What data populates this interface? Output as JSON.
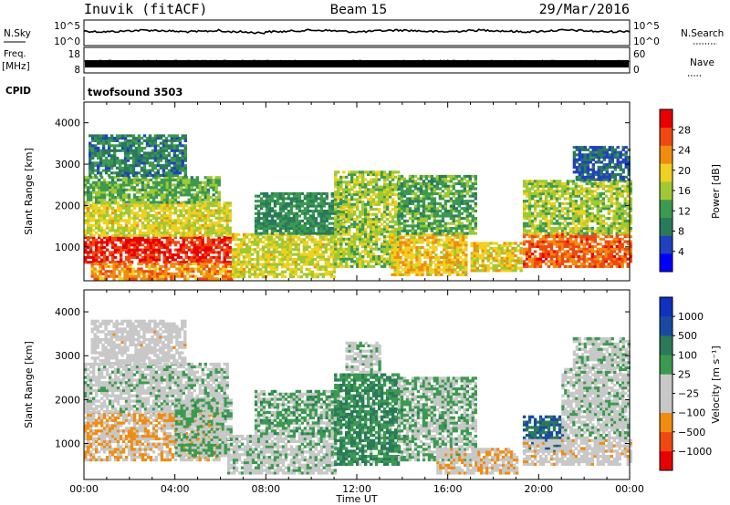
{
  "header": {
    "station": "Inuvik (fitACF)",
    "beam": "Beam 15",
    "date": "29/Mar/2016"
  },
  "aux_panels": {
    "nsky_label": "N.Sky",
    "nsky_ticks": [
      "10^5",
      "10^0"
    ],
    "nsearch_label": "N.Search",
    "nsearch_ticks": [
      "10^5",
      "10^0"
    ],
    "freq_label": "Freq.",
    "freq_unit": "[MHz]",
    "freq_ticks": [
      "18",
      "8"
    ],
    "nave_label": "Nave",
    "nave_ticks": [
      "60",
      "0"
    ],
    "cpid_label": "CPID",
    "cpid_value": "twofsound 3503"
  },
  "colors": {
    "power_scale": [
      "#0000ff",
      "#2040c0",
      "#2a7a5a",
      "#3c9a50",
      "#a0c832",
      "#f0d020",
      "#f08c10",
      "#f04810",
      "#e80000"
    ],
    "velocity_scale": [
      "#e80000",
      "#f04810",
      "#f08c10",
      "#c8c8c8",
      "#c8c8c8",
      "#3c9a50",
      "#2a7a5a",
      "#1a4aa0",
      "#1030c0"
    ]
  },
  "chart_data": [
    {
      "type": "heatmap",
      "title": "",
      "xlabel": "",
      "ylabel": "Slant Range [km]",
      "xlim": [
        "00:00",
        "00:00"
      ],
      "ylim": [
        180,
        4500
      ],
      "x_ticks": [
        "00:00",
        "04:00",
        "08:00",
        "12:00",
        "16:00",
        "20:00",
        "00:00"
      ],
      "y_ticks": [
        1000,
        2000,
        3000,
        4000
      ],
      "colorbar": {
        "label": "Power [dB]",
        "ticks": [
          4,
          8,
          12,
          16,
          20,
          24,
          28
        ],
        "range": [
          0,
          30
        ]
      },
      "blobs": [
        {
          "t0": 0.0,
          "t1": 6.4,
          "r0": 600,
          "r1": 1250,
          "level": 27
        },
        {
          "t0": 0.0,
          "t1": 6.4,
          "r0": 1250,
          "r1": 2050,
          "level": 17
        },
        {
          "t0": 0.0,
          "t1": 6.0,
          "r0": 2050,
          "r1": 2700,
          "level": 13
        },
        {
          "t0": 0.2,
          "t1": 4.5,
          "r0": 2700,
          "r1": 3700,
          "level": 9
        },
        {
          "t0": 0.3,
          "t1": 6.5,
          "r0": 200,
          "r1": 600,
          "level": 22
        },
        {
          "t0": 6.5,
          "t1": 11.0,
          "r0": 250,
          "r1": 1300,
          "level": 17
        },
        {
          "t0": 7.5,
          "t1": 11.5,
          "r0": 1300,
          "r1": 2300,
          "level": 10
        },
        {
          "t0": 11.0,
          "t1": 13.8,
          "r0": 500,
          "r1": 2800,
          "level": 15
        },
        {
          "t0": 13.5,
          "t1": 16.8,
          "r0": 300,
          "r1": 1300,
          "level": 19
        },
        {
          "t0": 13.8,
          "t1": 17.2,
          "r0": 1300,
          "r1": 2700,
          "level": 12
        },
        {
          "t0": 17.0,
          "t1": 19.2,
          "r0": 400,
          "r1": 1100,
          "level": 18
        },
        {
          "t0": 19.3,
          "t1": 24.0,
          "r0": 500,
          "r1": 1300,
          "level": 24
        },
        {
          "t0": 19.3,
          "t1": 24.0,
          "r0": 1300,
          "r1": 2600,
          "level": 15
        },
        {
          "t0": 21.5,
          "t1": 24.0,
          "r0": 2600,
          "r1": 3400,
          "level": 7
        }
      ]
    },
    {
      "type": "heatmap",
      "title": "",
      "xlabel": "Time UT",
      "ylabel": "Slant Range [km]",
      "xlim": [
        "00:00",
        "00:00"
      ],
      "ylim": [
        180,
        4500
      ],
      "x_ticks": [
        "00:00",
        "04:00",
        "08:00",
        "12:00",
        "16:00",
        "20:00",
        "00:00"
      ],
      "y_ticks": [
        1000,
        2000,
        3000,
        4000
      ],
      "colorbar": {
        "label": "Velocity [m s⁻¹]",
        "ticks": [
          "1000",
          "500",
          "100",
          "25",
          "−25",
          "−100",
          "−500",
          "−1000"
        ],
        "range": [
          -1250,
          1250
        ]
      },
      "blobs": [
        {
          "t0": 0.0,
          "t1": 6.0,
          "r0": 600,
          "r1": 1700,
          "level": -400
        },
        {
          "t0": 0.0,
          "t1": 6.3,
          "r0": 1700,
          "r1": 2800,
          "level": 0
        },
        {
          "t0": 0.3,
          "t1": 4.5,
          "r0": 2800,
          "r1": 3800,
          "level": -150
        },
        {
          "t0": 4.0,
          "t1": 6.5,
          "r0": 700,
          "r1": 2000,
          "level": 150
        },
        {
          "t0": 6.3,
          "t1": 11.0,
          "r0": 300,
          "r1": 1200,
          "level": 0
        },
        {
          "t0": 7.5,
          "t1": 11.3,
          "r0": 1200,
          "r1": 2200,
          "level": 200
        },
        {
          "t0": 11.0,
          "t1": 13.8,
          "r0": 500,
          "r1": 2600,
          "level": 400
        },
        {
          "t0": 11.5,
          "t1": 13.0,
          "r0": 2600,
          "r1": 3300,
          "level": 0
        },
        {
          "t0": 13.8,
          "t1": 17.2,
          "r0": 600,
          "r1": 2500,
          "level": 150
        },
        {
          "t0": 15.5,
          "t1": 19.0,
          "r0": 300,
          "r1": 900,
          "level": -300
        },
        {
          "t0": 19.3,
          "t1": 21.0,
          "r0": 800,
          "r1": 1600,
          "level": 700
        },
        {
          "t0": 19.3,
          "t1": 24.0,
          "r0": 500,
          "r1": 1100,
          "level": -200
        },
        {
          "t0": 21.0,
          "t1": 24.0,
          "r0": 1100,
          "r1": 2700,
          "level": 0
        },
        {
          "t0": 21.5,
          "t1": 24.0,
          "r0": 2700,
          "r1": 3400,
          "level": 0
        }
      ]
    }
  ]
}
